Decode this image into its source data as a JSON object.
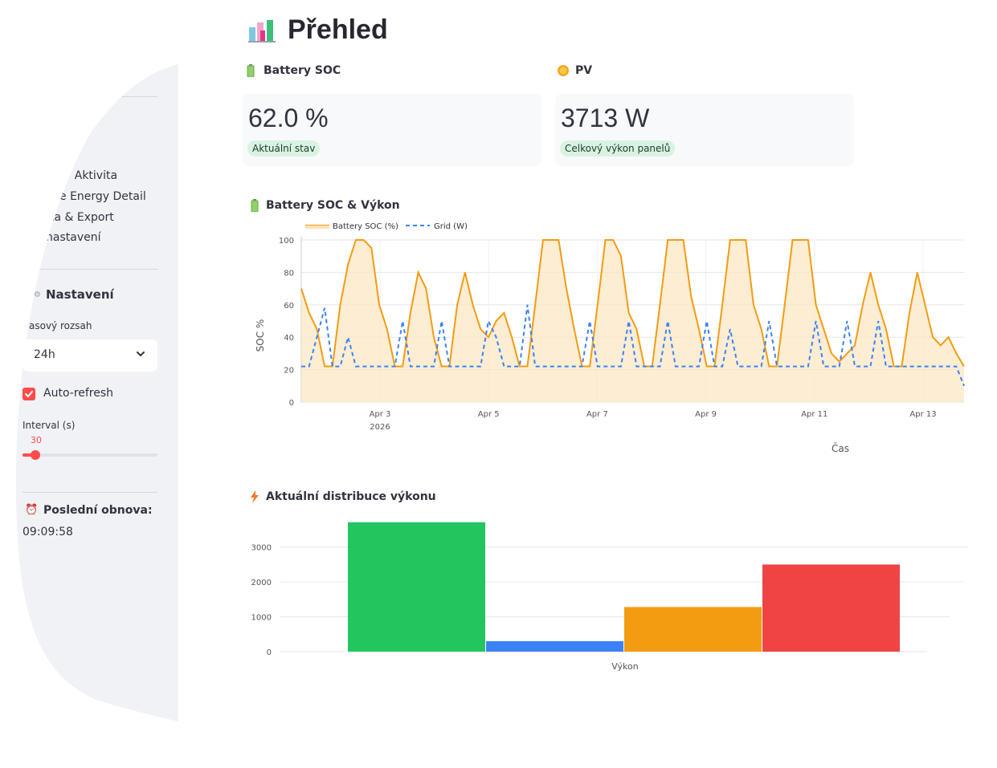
{
  "sidebar": {
    "nav_items": [
      {
        "label": "y Aktivita"
      },
      {
        "label": "e Energy Detail"
      },
      {
        "label": "ta & Export"
      },
      {
        "label": "nastavení"
      }
    ],
    "settings_heading": "Nastavení",
    "time_range": {
      "label": "asový rozsah",
      "value": "24h"
    },
    "auto_refresh": {
      "label": "Auto-refresh",
      "checked": true
    },
    "interval": {
      "label": "Interval (s)",
      "value": "30"
    },
    "last_refresh": {
      "label": "Poslední obnova:",
      "time": "09:09:58"
    }
  },
  "main": {
    "title": "Přehled",
    "metrics": [
      {
        "header": "Battery SOC",
        "value": "62.0 %",
        "delta": "Aktuální stav",
        "icon": "battery-icon"
      },
      {
        "header": "PV",
        "value": "3713 W",
        "delta": "Celkový výkon panelů",
        "icon": "sun-icon"
      }
    ],
    "soc_section": "Battery SOC & Výkon",
    "dist_section": "Aktuální distribuce výkonu"
  },
  "chart_data": [
    {
      "type": "line",
      "title": "Battery SOC & Výkon",
      "xlabel": "Čas",
      "ylabel": "SOC %",
      "legend": [
        "Battery SOC (%)",
        "Grid (W)"
      ],
      "legend_position": "top-left",
      "x_ticks": [
        {
          "label": "Apr 3",
          "sub": "2026"
        },
        {
          "label": "Apr 5",
          "sub": ""
        },
        {
          "label": "Apr 7",
          "sub": ""
        },
        {
          "label": "Apr 9",
          "sub": ""
        },
        {
          "label": "Apr 11",
          "sub": ""
        },
        {
          "label": "Apr 13",
          "sub": ""
        }
      ],
      "y_ticks": [
        "0",
        "20",
        "40",
        "60",
        "80",
        "100"
      ],
      "ylim": [
        0,
        100
      ],
      "grid": true,
      "series": [
        {
          "name": "Battery SOC (%)",
          "color": "#f39c12",
          "style": "solid",
          "values": [
            70,
            55,
            45,
            22,
            22,
            60,
            85,
            100,
            100,
            95,
            60,
            45,
            22,
            22,
            55,
            80,
            70,
            40,
            22,
            22,
            60,
            80,
            60,
            45,
            40,
            50,
            55,
            40,
            22,
            22,
            60,
            100,
            100,
            100,
            70,
            45,
            22,
            22,
            60,
            100,
            100,
            90,
            55,
            45,
            22,
            22,
            60,
            100,
            100,
            100,
            65,
            45,
            22,
            22,
            60,
            100,
            100,
            100,
            60,
            45,
            22,
            22,
            60,
            100,
            100,
            100,
            60,
            45,
            30,
            25,
            30,
            35,
            60,
            80,
            60,
            45,
            22,
            22,
            55,
            80,
            60,
            40,
            35,
            40,
            30,
            22
          ]
        },
        {
          "name": "Grid (W)",
          "color": "#3b82f6",
          "style": "dashed",
          "values": [
            22,
            22,
            40,
            58,
            22,
            22,
            40,
            22,
            22,
            22,
            22,
            22,
            22,
            50,
            22,
            22,
            22,
            22,
            50,
            22,
            22,
            22,
            22,
            22,
            50,
            40,
            22,
            22,
            22,
            60,
            22,
            22,
            22,
            22,
            22,
            22,
            22,
            50,
            22,
            22,
            22,
            22,
            50,
            22,
            22,
            22,
            22,
            50,
            22,
            22,
            22,
            22,
            50,
            22,
            22,
            45,
            22,
            22,
            22,
            22,
            50,
            22,
            22,
            22,
            22,
            22,
            50,
            22,
            22,
            22,
            50,
            22,
            22,
            22,
            50,
            22,
            22,
            22,
            22,
            22,
            22,
            22,
            22,
            22,
            22,
            10
          ]
        }
      ]
    },
    {
      "type": "bar",
      "title": "Aktuální distribuce výkonu",
      "xlabel": "Výkon",
      "categories": [
        "Výkon"
      ],
      "ylim": [
        0,
        3500
      ],
      "y_ticks": [
        "0",
        "1000",
        "2000",
        "3000"
      ],
      "grid": true,
      "bars": [
        {
          "value": 3713,
          "color": "#22c55e"
        },
        {
          "value": 300,
          "color": "#3b82f6"
        },
        {
          "value": 1280,
          "color": "#f39c12"
        },
        {
          "value": 2500,
          "color": "#ef4444"
        }
      ]
    }
  ]
}
